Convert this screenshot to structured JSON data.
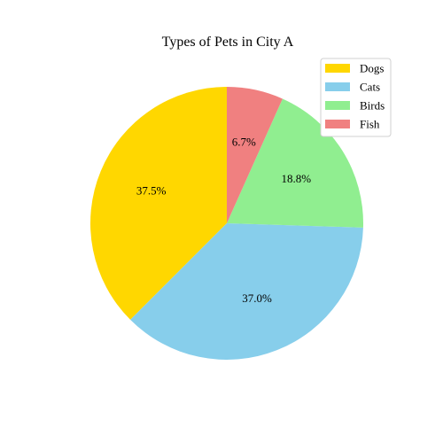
{
  "chart_data": {
    "type": "pie",
    "title": "Types of Pets in City A",
    "categories": [
      "Dogs",
      "Cats",
      "Birds",
      "Fish"
    ],
    "values": [
      37.5,
      37.0,
      18.8,
      6.7
    ],
    "labels": [
      "37.5%",
      "37.0%",
      "18.8%",
      "6.7%"
    ],
    "colors": [
      "#ffd700",
      "#87ceeb",
      "#90ee90",
      "#f08080"
    ],
    "start_angle_deg": 90,
    "direction": "counterclockwise",
    "legend": {
      "placement": "top-right",
      "entries": [
        "Dogs",
        "Cats",
        "Birds",
        "Fish"
      ]
    }
  }
}
